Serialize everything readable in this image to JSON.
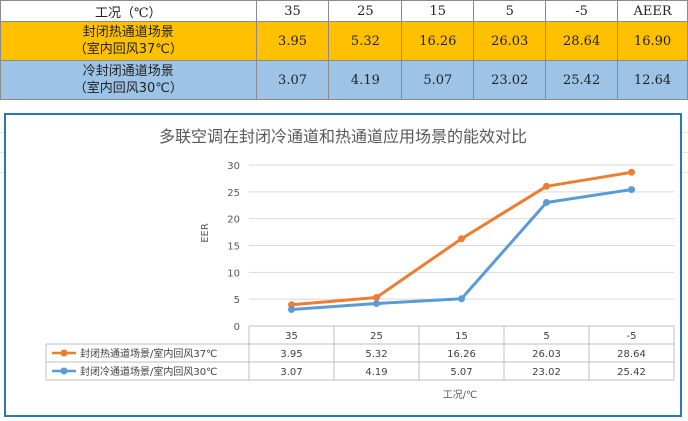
{
  "table": {
    "header": [
      "工况（℃）",
      "35",
      "25",
      "15",
      "5",
      "-5",
      "AEER"
    ],
    "rows": [
      {
        "label_line1": "封闭热通道场景",
        "label_line2": "（室内回风37℃）",
        "values": [
          "3.95",
          "5.32",
          "16.26",
          "26.03",
          "28.64",
          "16.90"
        ]
      },
      {
        "label_line1": "冷封闭通道场景",
        "label_line2": "（室内回风30℃）",
        "values": [
          "3.07",
          "4.19",
          "5.07",
          "23.02",
          "25.42",
          "12.64"
        ]
      }
    ]
  },
  "colors": {
    "hot_row": "#ffc000",
    "cold_row": "#9dc3e6",
    "series_hot": "#ed7d31",
    "series_cold": "#5b9bd5",
    "panel_border": "#2e75b6"
  },
  "chart_data": {
    "type": "line",
    "title": "多联空调在封闭冷通道和热通道应用场景的能效对比",
    "ylabel": "EER",
    "xlabel": "工况/℃",
    "ylim": [
      0,
      30
    ],
    "yticks": [
      "0",
      "5",
      "10",
      "15",
      "20",
      "25",
      "30"
    ],
    "categories": [
      "35",
      "25",
      "15",
      "5",
      "-5"
    ],
    "grid": true,
    "legend": "data-table-bottom",
    "series": [
      {
        "name": "封闭热通道场景/室内回风37℃",
        "values": [
          3.95,
          5.32,
          16.26,
          26.03,
          28.64
        ],
        "labels": [
          "3.95",
          "5.32",
          "16.26",
          "26.03",
          "28.64"
        ]
      },
      {
        "name": "封闭冷通道场景/室内回风30℃",
        "values": [
          3.07,
          4.19,
          5.07,
          23.02,
          25.42
        ],
        "labels": [
          "3.07",
          "4.19",
          "5.07",
          "23.02",
          "25.42"
        ]
      }
    ]
  }
}
